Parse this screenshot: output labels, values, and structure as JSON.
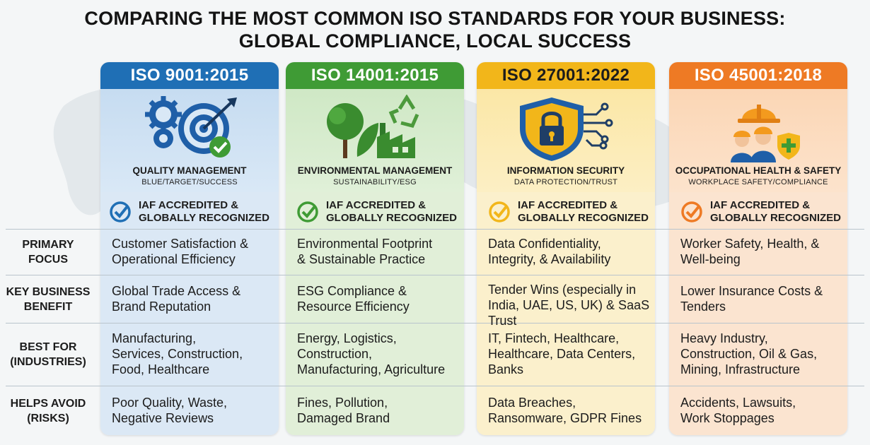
{
  "title_line1": "COMPARING THE MOST COMMON ISO STANDARDS FOR YOUR BUSINESS:",
  "title_line2": "GLOBAL COMPLIANCE, LOCAL SUCCESS",
  "colors": {
    "blue": "#1f6fb5",
    "green": "#3f9b35",
    "yellow": "#f2b61a",
    "orange": "#ee7a24"
  },
  "standards": [
    {
      "name": "ISO 9001:2015",
      "category": "QUALITY MANAGEMENT",
      "subtitle": "BLUE/TARGET/SUCCESS",
      "icon": "target-gear-icon",
      "badge": [
        "IAF ACCREDITED &",
        "GLOBALLY RECOGNIZED"
      ]
    },
    {
      "name": "ISO 14001:2015",
      "category": "ENVIRONMENTAL MANAGEMENT",
      "subtitle": "SUSTAINABILITY/ESG",
      "icon": "tree-factory-recycle-icon",
      "badge": [
        "IAF ACCREDITED &",
        "GLOBALLY RECOGNIZED"
      ]
    },
    {
      "name": "ISO 27001:2022",
      "category": "INFORMATION SECURITY",
      "subtitle": "DATA PROTECTION/TRUST",
      "icon": "shield-lock-icon",
      "badge": [
        "IAF ACCREDITED &",
        "GLOBALLY RECOGNIZED"
      ]
    },
    {
      "name": "ISO 45001:2018",
      "category": "OCCUPATIONAL HEALTH & SAFETY",
      "subtitle": "WORKPLACE SAFETY/COMPLIANCE",
      "icon": "hardhat-workers-icon",
      "badge": [
        "IAF ACCREDITED &",
        "GLOBALLY RECOGNIZED"
      ]
    }
  ],
  "rows": [
    {
      "label": [
        "PRIMARY",
        "FOCUS"
      ],
      "cells": [
        [
          "Customer Satisfaction &",
          "Operational Efficiency"
        ],
        [
          "Environmental Footprint",
          "& Sustainable Practice"
        ],
        [
          "Data Confidentiality,",
          "Integrity, & Availability"
        ],
        [
          "Worker Safety, Health, &",
          "Well-being"
        ]
      ]
    },
    {
      "label": [
        "KEY BUSINESS",
        "BENEFIT"
      ],
      "cells": [
        [
          "Global Trade Access &",
          "Brand Reputation"
        ],
        [
          "ESG Compliance &",
          "Resource Efficiency"
        ],
        [
          "Tender Wins (especially in",
          "India, UAE, US, UK) & SaaS",
          "Trust"
        ],
        [
          "Lower Insurance Costs &",
          "Tenders"
        ]
      ]
    },
    {
      "label": [
        "BEST FOR",
        "(INDUSTRIES)"
      ],
      "cells": [
        [
          "Manufacturing,",
          "Services, Construction,",
          "Food, Healthcare"
        ],
        [
          "Energy, Logistics,",
          "Construction,",
          "Manufacturing, Agriculture"
        ],
        [
          "IT, Fintech, Healthcare,",
          "Healthcare, Data Centers,",
          "Banks"
        ],
        [
          "Heavy Industry,",
          "Construction, Oil & Gas,",
          "Mining, Infrastructure"
        ]
      ]
    },
    {
      "label": [
        "HELPS AVOID",
        "(RISKS)"
      ],
      "cells": [
        [
          "Poor Quality, Waste,",
          "Negative Reviews"
        ],
        [
          "Fines, Pollution,",
          "Damaged Brand"
        ],
        [
          "Data Breaches,",
          "Ransomware, GDPR Fines"
        ],
        [
          "Accidents, Lawsuits,",
          "Work Stoppages"
        ]
      ]
    }
  ]
}
